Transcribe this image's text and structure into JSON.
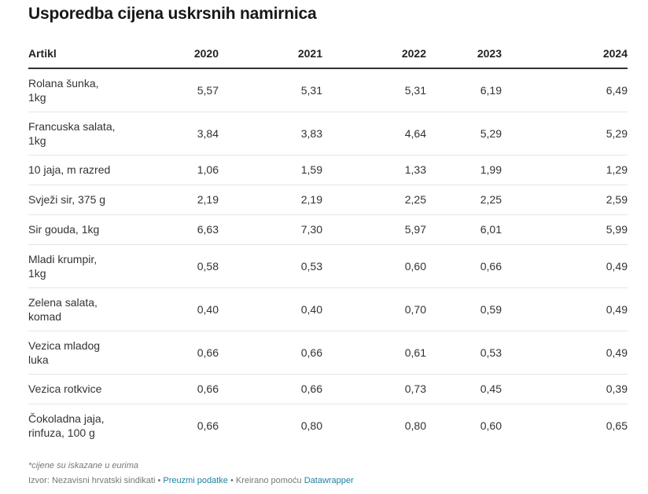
{
  "title": "Usporedba cijena uskrsnih namirnica",
  "footnote": "*cijene su iskazane u eurima",
  "source": {
    "prefix": "Izvor: Nezavisni hrvatski sindikati",
    "sep": " • ",
    "download_link": "Preuzmi podatke",
    "created_with": "Kreirano pomoću",
    "tool_link": "Datawrapper"
  },
  "colors": {
    "text": "#333333",
    "header_rule": "#333333",
    "row_rule": "#e6e6e6",
    "link": "#1d81a2",
    "muted": "#777777"
  },
  "chart_data": {
    "type": "table",
    "title": "Usporedba cijena uskrsnih namirnica",
    "columns": [
      "Artikl",
      "2020",
      "2021",
      "2022",
      "2023",
      "2024"
    ],
    "rows": [
      {
        "label": [
          "Rolana šunka,",
          "1kg"
        ],
        "values": [
          "5,57",
          "5,31",
          "5,31",
          "6,19",
          "6,49"
        ]
      },
      {
        "label": [
          "Francuska salata,",
          "1kg"
        ],
        "values": [
          "3,84",
          "3,83",
          "4,64",
          "5,29",
          "5,29"
        ]
      },
      {
        "label": [
          "10 jaja, m razred"
        ],
        "values": [
          "1,06",
          "1,59",
          "1,33",
          "1,99",
          "1,29"
        ]
      },
      {
        "label": [
          "Svježi sir, 375 g"
        ],
        "values": [
          "2,19",
          "2,19",
          "2,25",
          "2,25",
          "2,59"
        ]
      },
      {
        "label": [
          "Sir gouda, 1kg"
        ],
        "values": [
          "6,63",
          "7,30",
          "5,97",
          "6,01",
          "5,99"
        ]
      },
      {
        "label": [
          "Mladi krumpir,",
          "1kg"
        ],
        "values": [
          "0,58",
          "0,53",
          "0,60",
          "0,66",
          "0,49"
        ]
      },
      {
        "label": [
          "Zelena salata,",
          "komad"
        ],
        "values": [
          "0,40",
          "0,40",
          "0,70",
          "0,59",
          "0,49"
        ]
      },
      {
        "label": [
          "Vezica mladog",
          "luka"
        ],
        "values": [
          "0,66",
          "0,66",
          "0,61",
          "0,53",
          "0,49"
        ]
      },
      {
        "label": [
          "Vezica rotkvice"
        ],
        "values": [
          "0,66",
          "0,66",
          "0,73",
          "0,45",
          "0,39"
        ]
      },
      {
        "label": [
          "Čokoladna jaja,",
          "rinfuza, 100 g"
        ],
        "values": [
          "0,66",
          "0,80",
          "0,80",
          "0,60",
          "0,65"
        ]
      }
    ]
  }
}
